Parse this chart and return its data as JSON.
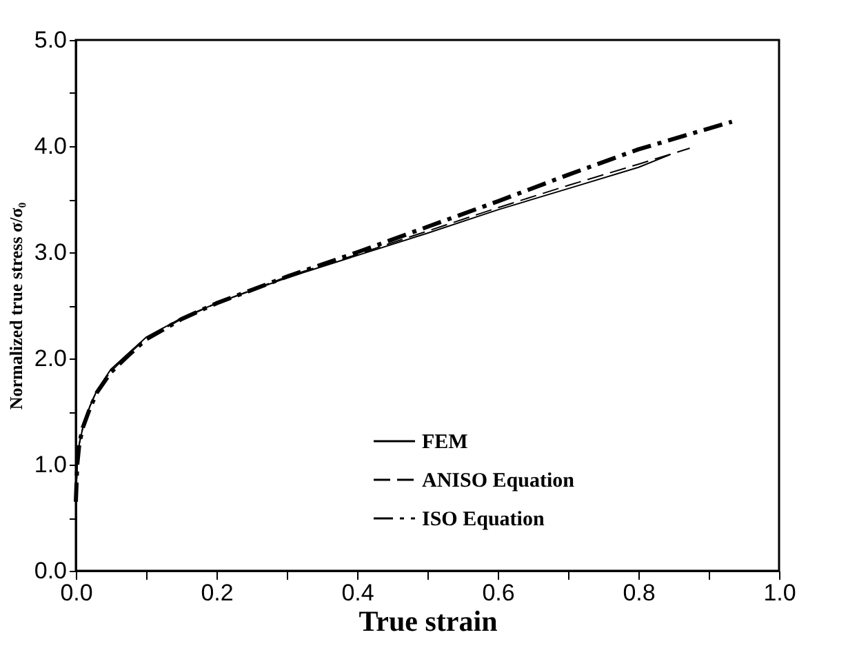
{
  "chart_data": {
    "type": "line",
    "xlabel": "True strain",
    "ylabel": "Normalized true stress σ/σ₀",
    "xlim": [
      0,
      1
    ],
    "ylim": [
      0,
      5
    ],
    "xticks": [
      {
        "value": 0,
        "label": "0.0"
      },
      {
        "value": 0.1,
        "label": null
      },
      {
        "value": 0.2,
        "label": "0.2"
      },
      {
        "value": 0.3,
        "label": null
      },
      {
        "value": 0.4,
        "label": "0.4"
      },
      {
        "value": 0.5,
        "label": null
      },
      {
        "value": 0.6,
        "label": "0.6"
      },
      {
        "value": 0.7,
        "label": null
      },
      {
        "value": 0.8,
        "label": "0.8"
      },
      {
        "value": 0.9,
        "label": null
      },
      {
        "value": 1,
        "label": "1.0"
      }
    ],
    "yticks": [
      {
        "value": 0,
        "label": "0.0"
      },
      {
        "value": 0.5,
        "label": null
      },
      {
        "value": 1,
        "label": "1.0"
      },
      {
        "value": 1.5,
        "label": null
      },
      {
        "value": 2,
        "label": "2.0"
      },
      {
        "value": 2.5,
        "label": null
      },
      {
        "value": 3,
        "label": "3.0"
      },
      {
        "value": 3.5,
        "label": null
      },
      {
        "value": 4,
        "label": "4.0"
      },
      {
        "value": 4.5,
        "label": null
      },
      {
        "value": 5,
        "label": "5.0"
      }
    ],
    "grid": false,
    "legend": "bottom right",
    "marker": "none",
    "series": [
      {
        "name": "FEM",
        "color": "#000000",
        "line_style": "solid",
        "x": [
          0,
          0.002,
          0.005,
          0.01,
          0.02,
          0.03,
          0.05,
          0.075,
          0.1,
          0.15,
          0.2,
          0.3,
          0.4,
          0.5,
          0.6,
          0.7,
          0.8,
          0.845
        ],
        "values": [
          0.65,
          1.0,
          1.2,
          1.35,
          1.55,
          1.7,
          1.9,
          2.05,
          2.2,
          2.38,
          2.52,
          2.76,
          2.97,
          3.18,
          3.4,
          3.6,
          3.8,
          3.92
        ]
      },
      {
        "name": "ANISO Equation",
        "color": "#000000",
        "line_style": "dashed",
        "x": [
          0,
          0.002,
          0.005,
          0.01,
          0.02,
          0.03,
          0.05,
          0.075,
          0.1,
          0.15,
          0.2,
          0.3,
          0.4,
          0.5,
          0.6,
          0.7,
          0.8,
          0.873
        ],
        "values": [
          0.65,
          1.0,
          1.2,
          1.35,
          1.55,
          1.7,
          1.88,
          2.04,
          2.19,
          2.37,
          2.52,
          2.77,
          2.98,
          3.2,
          3.42,
          3.63,
          3.83,
          3.98
        ]
      },
      {
        "name": "ISO Equation",
        "color": "#000000",
        "line_style": "dashdot",
        "x": [
          0,
          0.002,
          0.005,
          0.01,
          0.02,
          0.03,
          0.05,
          0.075,
          0.1,
          0.15,
          0.2,
          0.3,
          0.4,
          0.5,
          0.6,
          0.7,
          0.8,
          0.933
        ],
        "values": [
          0.65,
          1.0,
          1.2,
          1.35,
          1.53,
          1.68,
          1.87,
          2.03,
          2.18,
          2.37,
          2.52,
          2.77,
          3.0,
          3.24,
          3.48,
          3.73,
          3.97,
          4.23
        ]
      }
    ]
  }
}
